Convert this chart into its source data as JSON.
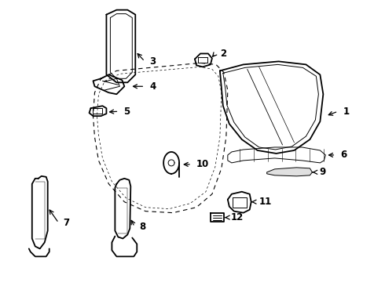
{
  "background_color": "#ffffff",
  "line_color": "#000000",
  "fig_width": 4.9,
  "fig_height": 3.6,
  "dpi": 100,
  "label_fontsize": 8.5,
  "lw_main": 1.3,
  "lw_thin": 0.7,
  "lw_dash": 0.8
}
